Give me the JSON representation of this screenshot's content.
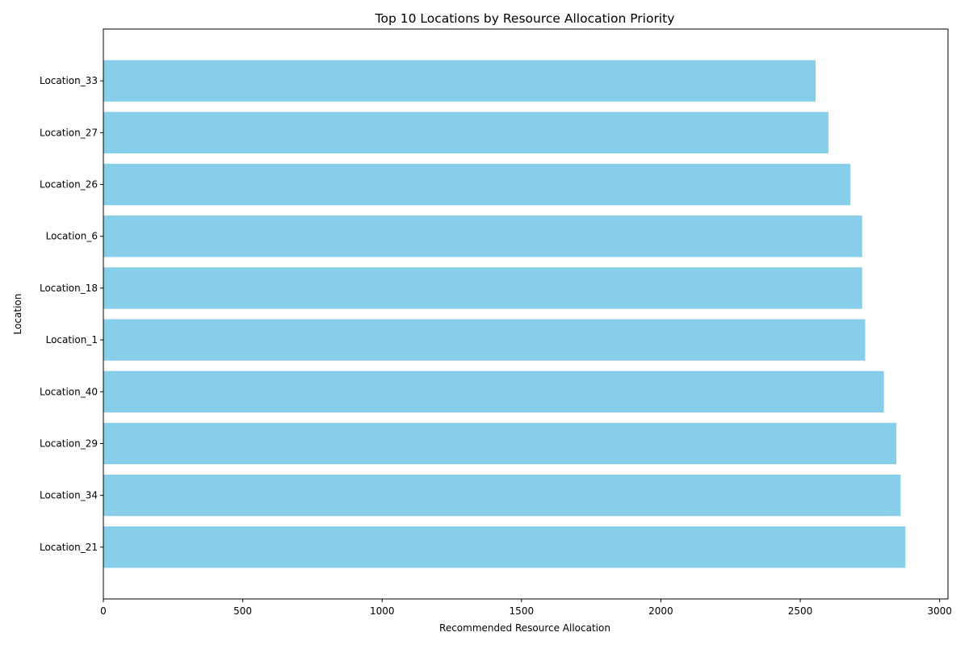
{
  "chart_data": {
    "type": "bar",
    "orientation": "horizontal",
    "title": "Top 10 Locations by Resource Allocation Priority",
    "xlabel": "Recommended Resource Allocation",
    "ylabel": "Location",
    "xlim": [
      0,
      3030
    ],
    "xticks": [
      0,
      500,
      1000,
      1500,
      2000,
      2500,
      3000
    ],
    "grid": false,
    "bar_color": "#87CEEB",
    "categories": [
      "Location_21",
      "Location_34",
      "Location_29",
      "Location_40",
      "Location_1",
      "Location_18",
      "Location_6",
      "Location_26",
      "Location_27",
      "Location_33"
    ],
    "values": [
      2877,
      2860,
      2845,
      2800,
      2733,
      2722,
      2722,
      2680,
      2601,
      2555
    ]
  }
}
